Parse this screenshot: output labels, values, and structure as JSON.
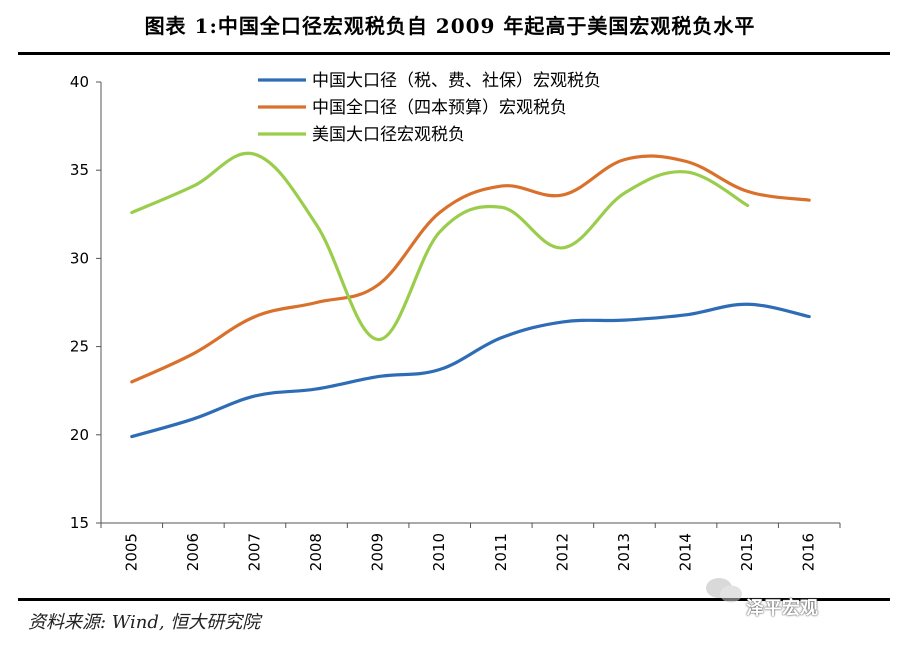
{
  "header": {
    "title": "图表 1:中国全口径宏观税负自 2009 年起高于美国宏观税负水平"
  },
  "footer": {
    "source": "资料来源: Wind, 恒大研究院",
    "watermark": "泽平宏观"
  },
  "chart_data": {
    "type": "line",
    "title": "图表 1:中国全口径宏观税负自 2009 年起高于美国宏观税负水平",
    "xlabel": "",
    "ylabel": "",
    "categories": [
      "2005",
      "2006",
      "2007",
      "2008",
      "2009",
      "2010",
      "2011",
      "2012",
      "2013",
      "2014",
      "2015",
      "2016"
    ],
    "ylim": [
      15,
      40
    ],
    "yticks": [
      15,
      20,
      25,
      30,
      35,
      40
    ],
    "grid": false,
    "legend_position": "top-center",
    "series": [
      {
        "name": "中国大口径（税、费、社保）宏观税负",
        "color": "#2E6DB5",
        "values": [
          19.9,
          20.9,
          22.2,
          22.6,
          23.3,
          23.7,
          25.5,
          26.4,
          26.5,
          26.8,
          27.4,
          26.7
        ]
      },
      {
        "name": "中国全口径（四本预算）宏观税负",
        "color": "#D9712C",
        "values": [
          23.0,
          24.6,
          26.7,
          27.5,
          28.5,
          32.6,
          34.1,
          33.6,
          35.6,
          35.5,
          33.8,
          33.3
        ]
      },
      {
        "name": "美国大口径宏观税负",
        "color": "#9ACD4B",
        "values": [
          32.6,
          34.1,
          35.9,
          31.9,
          25.4,
          31.5,
          32.9,
          30.6,
          33.7,
          34.9,
          33.0,
          null
        ]
      }
    ]
  }
}
